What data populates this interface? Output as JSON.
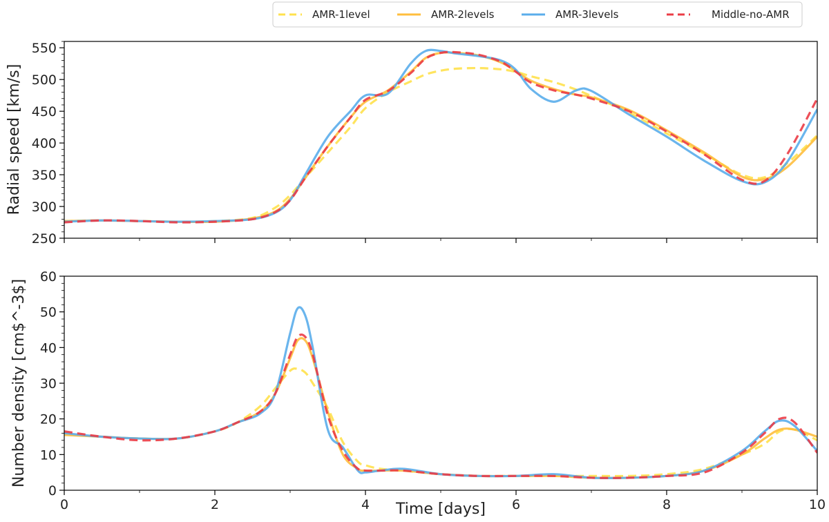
{
  "colors": {
    "amr1": "#FFE14D",
    "amr2": "#FFBE3D",
    "amr3": "#5AADEB",
    "middle": "#EB3C46"
  },
  "chart_data": [
    {
      "type": "line",
      "panel": "top",
      "xlabel": "",
      "ylabel": "Radial speed [km/s]",
      "xlim": [
        0,
        10
      ],
      "ylim": [
        250,
        560
      ],
      "yticks": [
        250,
        300,
        350,
        400,
        450,
        500,
        550
      ],
      "xticks": [
        0,
        2,
        4,
        6,
        8,
        10
      ],
      "x": [
        0,
        0.5,
        1,
        1.5,
        2,
        2.5,
        2.8,
        3,
        3.2,
        3.5,
        3.8,
        4,
        4.3,
        4.6,
        4.8,
        5,
        5.2,
        5.5,
        5.8,
        6,
        6.2,
        6.5,
        6.8,
        7,
        7.5,
        8,
        8.5,
        9,
        9.3,
        9.6,
        10
      ],
      "series": [
        {
          "name": "AMR-1level",
          "style": "dashed",
          "color_key": "amr1",
          "values": [
            277,
            278,
            277,
            276,
            277,
            282,
            298,
            318,
            345,
            385,
            425,
            455,
            480,
            497,
            508,
            514,
            517,
            518,
            516,
            512,
            505,
            496,
            484,
            474,
            448,
            415,
            383,
            350,
            346,
            368,
            412
          ]
        },
        {
          "name": "AMR-2levels",
          "style": "solid",
          "color_key": "amr2",
          "values": [
            277,
            278,
            277,
            276,
            276,
            281,
            292,
            312,
            345,
            395,
            440,
            465,
            483,
            512,
            534,
            542,
            542,
            538,
            527,
            513,
            498,
            485,
            476,
            472,
            452,
            420,
            385,
            347,
            343,
            362,
            410
          ]
        },
        {
          "name": "AMR-3levels",
          "style": "solid",
          "color_key": "amr3",
          "values": [
            276,
            278,
            277,
            276,
            277,
            280,
            290,
            310,
            350,
            410,
            450,
            475,
            478,
            525,
            545,
            545,
            541,
            537,
            530,
            515,
            485,
            465,
            483,
            482,
            445,
            410,
            372,
            340,
            338,
            370,
            453
          ]
        },
        {
          "name": "Middle-no-AMR",
          "style": "dashed",
          "color_key": "middle",
          "values": [
            275,
            278,
            277,
            275,
            276,
            280,
            291,
            310,
            345,
            395,
            440,
            468,
            482,
            510,
            533,
            542,
            543,
            539,
            528,
            512,
            495,
            483,
            476,
            470,
            450,
            418,
            382,
            342,
            340,
            382,
            470
          ]
        }
      ]
    },
    {
      "type": "line",
      "panel": "bottom",
      "xlabel": "Time [days]",
      "ylabel": "Number density [cm$^-3$]",
      "xlim": [
        0,
        10
      ],
      "ylim": [
        0,
        60
      ],
      "yticks": [
        0,
        10,
        20,
        30,
        40,
        50,
        60
      ],
      "xticks": [
        0,
        2,
        4,
        6,
        8,
        10
      ],
      "xticklabels": [
        "0",
        "2",
        "4",
        "6",
        "8",
        "10"
      ],
      "x": [
        0,
        0.5,
        1,
        1.5,
        2,
        2.3,
        2.6,
        2.8,
        3,
        3.1,
        3.2,
        3.3,
        3.5,
        3.7,
        3.9,
        4,
        4.2,
        4.5,
        5,
        5.5,
        6,
        6.5,
        7,
        7.5,
        8,
        8.5,
        9,
        9.3,
        9.5,
        9.7,
        10
      ],
      "series": [
        {
          "name": "AMR-1level",
          "style": "dashed",
          "color_key": "amr1",
          "values": [
            16,
            15,
            14.5,
            14.5,
            16.5,
            19,
            23.5,
            28.5,
            33.5,
            34,
            33,
            30,
            23,
            13.5,
            8,
            7,
            6,
            5.5,
            4.5,
            4,
            4,
            4,
            4,
            4,
            4.5,
            6,
            10,
            13,
            16.5,
            17,
            14
          ]
        },
        {
          "name": "AMR-2levels",
          "style": "solid",
          "color_key": "amr2",
          "values": [
            15.5,
            15,
            14.5,
            14.5,
            16.5,
            19,
            22,
            27,
            37,
            42,
            42,
            37,
            22,
            10,
            6,
            5.5,
            5.5,
            5.5,
            4.5,
            4,
            4,
            4,
            3.5,
            3.5,
            4,
            5.5,
            10,
            14.5,
            17,
            17,
            15
          ]
        },
        {
          "name": "AMR-3levels",
          "style": "solid",
          "color_key": "amr3",
          "values": [
            16,
            15,
            14.5,
            14.5,
            16.5,
            19,
            21.5,
            27,
            44,
            51,
            49,
            40,
            17,
            12,
            5.5,
            5,
            5.5,
            6,
            4.5,
            4,
            4,
            4.5,
            3.5,
            3.5,
            4,
            5.5,
            11,
            16.5,
            19.5,
            18,
            11
          ]
        },
        {
          "name": "Middle-no-AMR",
          "style": "dashed",
          "color_key": "middle",
          "values": [
            16.5,
            15,
            14,
            14.5,
            16.5,
            19,
            22,
            27,
            38,
            43,
            43,
            38,
            21,
            11,
            6,
            5.5,
            5.5,
            5.5,
            4.5,
            4,
            4,
            4,
            3.5,
            3.5,
            4,
            5,
            10.5,
            16,
            20,
            19,
            10.5
          ]
        }
      ]
    }
  ],
  "legend": {
    "items": [
      {
        "label": "AMR-1level",
        "style": "dashed",
        "color_key": "amr1"
      },
      {
        "label": "AMR-2levels",
        "style": "solid",
        "color_key": "amr2"
      },
      {
        "label": "AMR-3levels",
        "style": "solid",
        "color_key": "amr3"
      },
      {
        "label": "Middle-no-AMR",
        "style": "dashed",
        "color_key": "middle"
      }
    ],
    "placement": "top-right"
  }
}
